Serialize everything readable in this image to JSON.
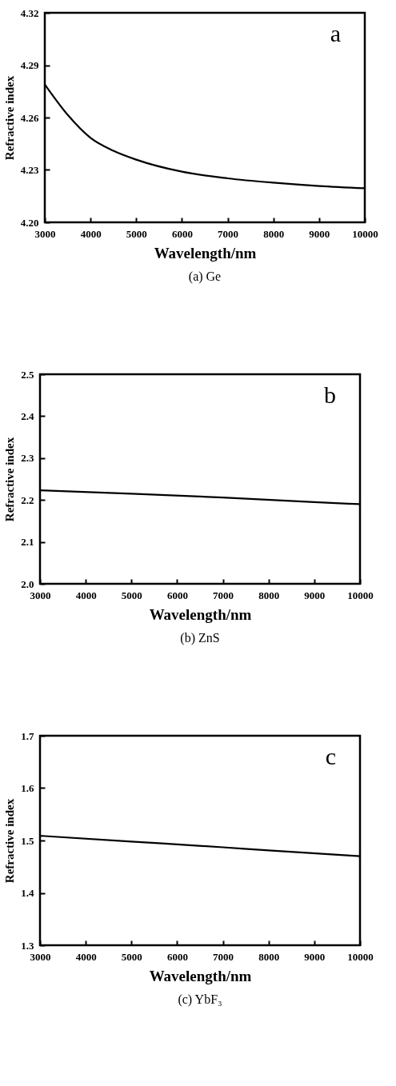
{
  "chart_data": [
    {
      "type": "line",
      "title": "(a) Ge",
      "xlabel": "Wavelength/nm",
      "ylabel": "Refractive index",
      "annotations": [
        "a"
      ],
      "x": [
        3000,
        3500,
        4000,
        4500,
        5000,
        6000,
        7000,
        8000,
        9000,
        10000
      ],
      "series": [
        {
          "color": "#000000",
          "values": [
            4.279,
            4.2616,
            4.2484,
            4.241,
            4.2359,
            4.229,
            4.2252,
            4.2227,
            4.2208,
            4.2195
          ]
        }
      ],
      "xlim": [
        3000,
        10000
      ],
      "xticks": [
        3000,
        4000,
        5000,
        6000,
        7000,
        8000,
        9000,
        10000
      ],
      "ylim": [
        4.2,
        4.32
      ],
      "yticks": [
        {
          "value": 4.2,
          "label": "4.20"
        },
        4.23,
        4.26,
        4.29,
        4.32
      ]
    },
    {
      "type": "line",
      "title": "(b) ZnS",
      "xlabel": "Wavelength/nm",
      "ylabel": "Refractive index",
      "annotations": [
        "b"
      ],
      "x": [
        3000,
        5000,
        7000,
        9000,
        10000
      ],
      "series": [
        {
          "color": "#000000",
          "values": [
            2.223,
            2.215,
            2.206,
            2.195,
            2.19
          ]
        }
      ],
      "xlim": [
        3000,
        10000
      ],
      "xticks": [
        3000,
        4000,
        5000,
        6000,
        7000,
        8000,
        9000,
        10000
      ],
      "ylim": [
        2.0,
        2.5
      ],
      "yticks": [
        {
          "value": 2.0,
          "label": "2.0"
        },
        2.1,
        2.2,
        2.3,
        2.4,
        2.5
      ]
    },
    {
      "type": "line",
      "title": "(c) YbF₃",
      "xlabel": "Wavelength/nm",
      "ylabel": "Refractive index",
      "annotations": [
        "c"
      ],
      "x": [
        3000,
        5000,
        7000,
        8000,
        10000
      ],
      "series": [
        {
          "color": "#000000",
          "values": [
            1.509,
            1.498,
            1.487,
            1.481,
            1.47
          ]
        }
      ],
      "xlim": [
        3000,
        10000
      ],
      "xticks": [
        3000,
        4000,
        5000,
        6000,
        7000,
        8000,
        9000,
        10000
      ],
      "ylim": [
        1.3,
        1.7
      ],
      "yticks": [
        1.3,
        1.4,
        1.5,
        1.6,
        1.7
      ]
    }
  ]
}
